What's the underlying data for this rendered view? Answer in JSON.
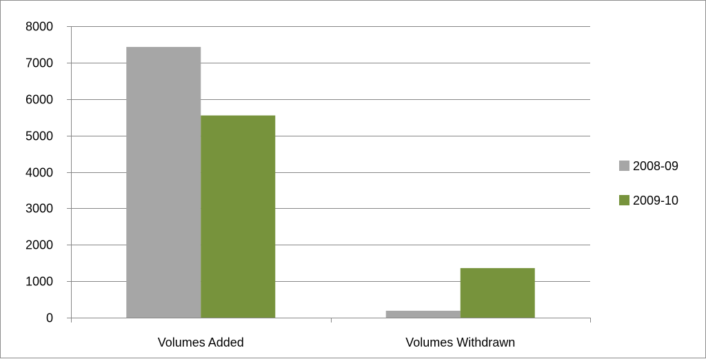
{
  "chart_data": {
    "type": "bar",
    "categories": [
      "Volumes Added",
      "Volumes Withdrawn"
    ],
    "series": [
      {
        "name": "2008-09",
        "values": [
          7430,
          190
        ]
      },
      {
        "name": "2009-10",
        "values": [
          5550,
          1360
        ]
      }
    ],
    "ylim": [
      0,
      8000
    ],
    "yticks": [
      "0",
      "1000",
      "2000",
      "3000",
      "4000",
      "5000",
      "6000",
      "7000",
      "8000"
    ],
    "grid": true,
    "legend_position": "right",
    "colors": {
      "series": [
        "#a6a6a6",
        "#77933c"
      ],
      "grid": "#868686",
      "axis": "#868686"
    }
  }
}
